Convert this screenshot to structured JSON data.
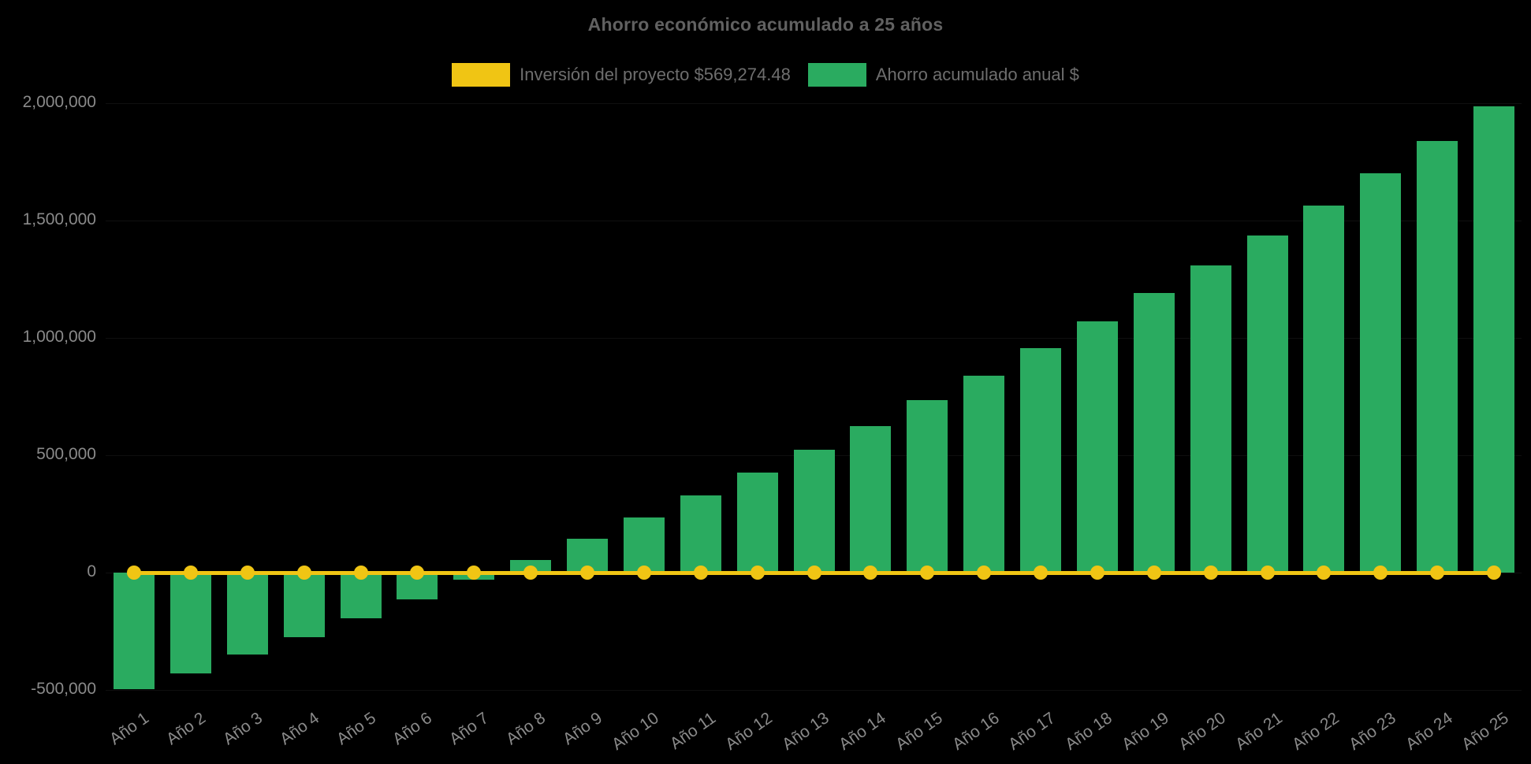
{
  "chart_data": {
    "type": "bar",
    "title": "Ahorro económico acumulado a 25 años",
    "categories": [
      "Año 1",
      "Año 2",
      "Año 3",
      "Año 4",
      "Año 5",
      "Año 6",
      "Año 7",
      "Año 8",
      "Año 9",
      "Año 10",
      "Año 11",
      "Año 12",
      "Año 13",
      "Año 14",
      "Año 15",
      "Año 16",
      "Año 17",
      "Año 18",
      "Año 19",
      "Año 20",
      "Año 21",
      "Año 22",
      "Año 23",
      "Año 24",
      "Año 25"
    ],
    "series": [
      {
        "name": "Inversión del proyecto $569,274.48",
        "type": "line",
        "color": "#F0C514",
        "marker": "circle",
        "values": [
          0,
          0,
          0,
          0,
          0,
          0,
          0,
          0,
          0,
          0,
          0,
          0,
          0,
          0,
          0,
          0,
          0,
          0,
          0,
          0,
          0,
          0,
          0,
          0,
          0
        ]
      },
      {
        "name": "Ahorro acumulado anual $",
        "type": "bar",
        "color": "#2AAB60",
        "values": [
          -495000,
          -430000,
          -350000,
          -275000,
          -195000,
          -115000,
          -30000,
          55000,
          145000,
          235000,
          330000,
          425000,
          525000,
          625000,
          735000,
          840000,
          955000,
          1070000,
          1190000,
          1310000,
          1435000,
          1565000,
          1700000,
          1840000,
          1985000
        ]
      }
    ],
    "investment_value": 569274.48,
    "xlabel": "",
    "ylabel": "",
    "ylim": [
      -550000,
      2100000
    ],
    "yticks": [
      -500000,
      0,
      500000,
      1000000,
      1500000,
      2000000
    ],
    "ytick_labels": [
      "-500,000",
      "0",
      "500,000",
      "1,000,000",
      "1,500,000",
      "2,000,000"
    ],
    "legend_position": "top",
    "grid": "faint",
    "background_color": "#000000",
    "title_color": "#616161",
    "legend_text_color": "#6E6E6E",
    "tick_label_color": "#8A8A8A"
  }
}
